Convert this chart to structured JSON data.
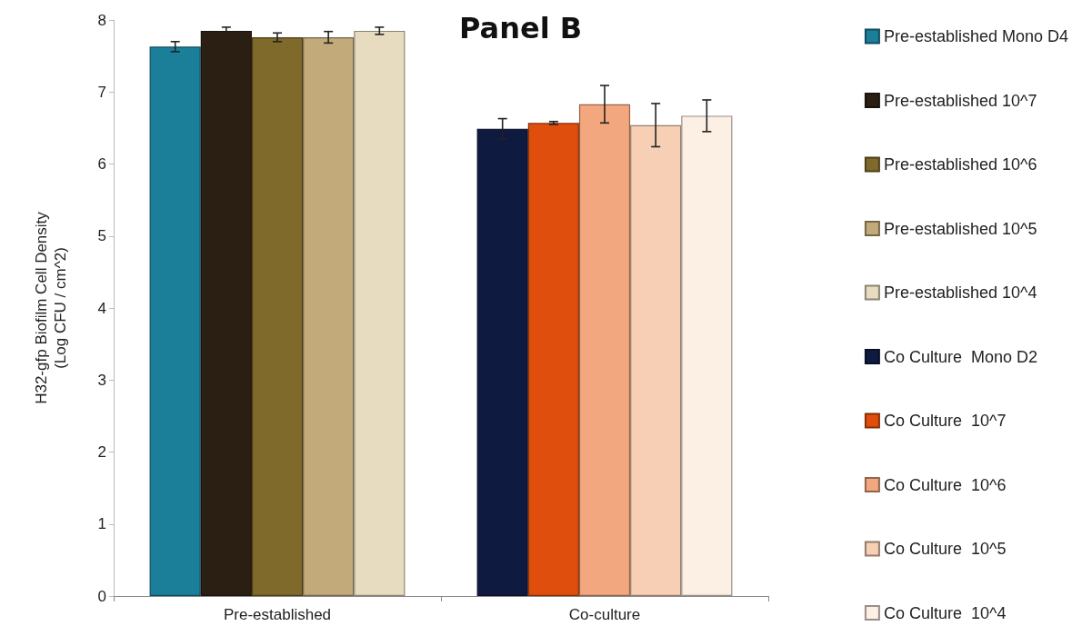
{
  "chart_data": {
    "type": "bar",
    "title": "Panel B",
    "ylabel": "H32-gfp Biofilm Cell Density\n(Log CFU / cm^2)",
    "categories": [
      "Pre-established",
      "Co-culture"
    ],
    "series": [
      {
        "name": "Pre-established Mono D4",
        "color": "#1b7f9a",
        "values": [
          7.63,
          null
        ],
        "errors": [
          0.07,
          null
        ]
      },
      {
        "name": "Pre-established 10^7",
        "color": "#2a1f12",
        "values": [
          7.85,
          null
        ],
        "errors": [
          0.05,
          null
        ]
      },
      {
        "name": "Pre-established 10^6",
        "color": "#7f6a2c",
        "values": [
          7.76,
          null
        ],
        "errors": [
          0.06,
          null
        ]
      },
      {
        "name": "Pre-established 10^5",
        "color": "#c2aa7a",
        "values": [
          7.76,
          null
        ],
        "errors": [
          0.08,
          null
        ]
      },
      {
        "name": "Pre-established 10^4",
        "color": "#e8dcc0",
        "values": [
          7.85,
          null
        ],
        "errors": [
          0.05,
          null
        ]
      },
      {
        "name": "Co Culture  Mono D2",
        "color": "#0e1a40",
        "values": [
          null,
          6.49
        ],
        "errors": [
          null,
          0.14
        ]
      },
      {
        "name": "Co Culture  10^7",
        "color": "#df4e0c",
        "values": [
          null,
          6.57
        ],
        "errors": [
          null,
          0.02
        ]
      },
      {
        "name": "Co Culture  10^6",
        "color": "#f2a77e",
        "values": [
          null,
          6.83
        ],
        "errors": [
          null,
          0.26
        ]
      },
      {
        "name": "Co Culture  10^5",
        "color": "#f6cfb4",
        "values": [
          null,
          6.54
        ],
        "errors": [
          null,
          0.3
        ]
      },
      {
        "name": "Co Culture  10^4",
        "color": "#fcefe4",
        "values": [
          null,
          6.67
        ],
        "errors": [
          null,
          0.22
        ]
      }
    ],
    "ylim": [
      0,
      8
    ],
    "yticks": [
      0,
      1,
      2,
      3,
      4,
      5,
      6,
      7,
      8
    ],
    "grid": false,
    "legend": "right"
  }
}
